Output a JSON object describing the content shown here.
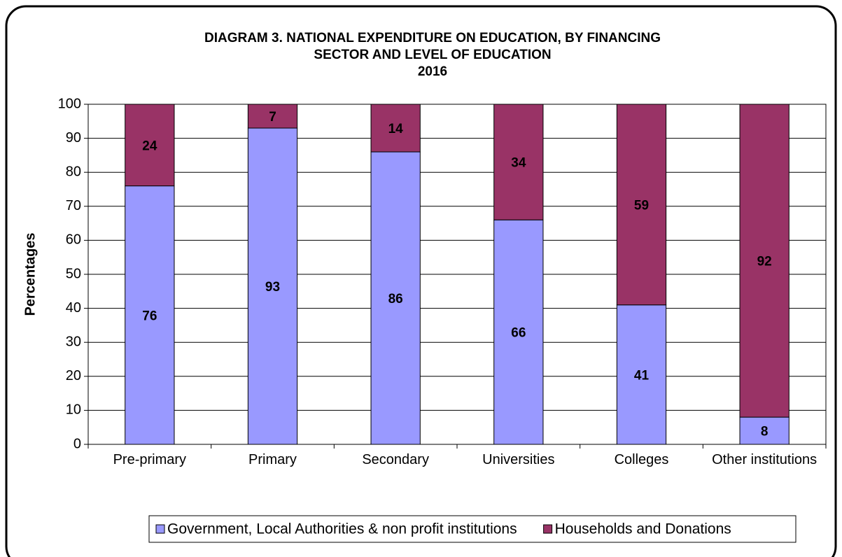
{
  "chart_data": {
    "type": "stacked_bar",
    "title": [
      "DIAGRAM 3. NATIONAL EXPENDITURE ON EDUCATION, BY FINANCING",
      "SECTOR AND LEVEL OF EDUCATION"
    ],
    "subtitle": "2016",
    "y_label": "Percentages",
    "categories": [
      "Pre-primary",
      "Primary",
      "Secondary",
      "Universities",
      "Colleges",
      "Other institutions"
    ],
    "series": [
      {
        "name": "Government, Local Authorities & non profit institutions",
        "color": "#9999ff",
        "values": [
          76,
          93,
          86,
          66,
          41,
          8
        ]
      },
      {
        "name": "Households and Donations",
        "color": "#993366",
        "values": [
          24,
          7,
          14,
          34,
          59,
          92
        ]
      }
    ],
    "ylim": [
      0,
      100
    ],
    "yticks": [
      0,
      10,
      20,
      30,
      40,
      50,
      60,
      70,
      80,
      90,
      100
    ],
    "grid": true,
    "legend": "bottom"
  }
}
